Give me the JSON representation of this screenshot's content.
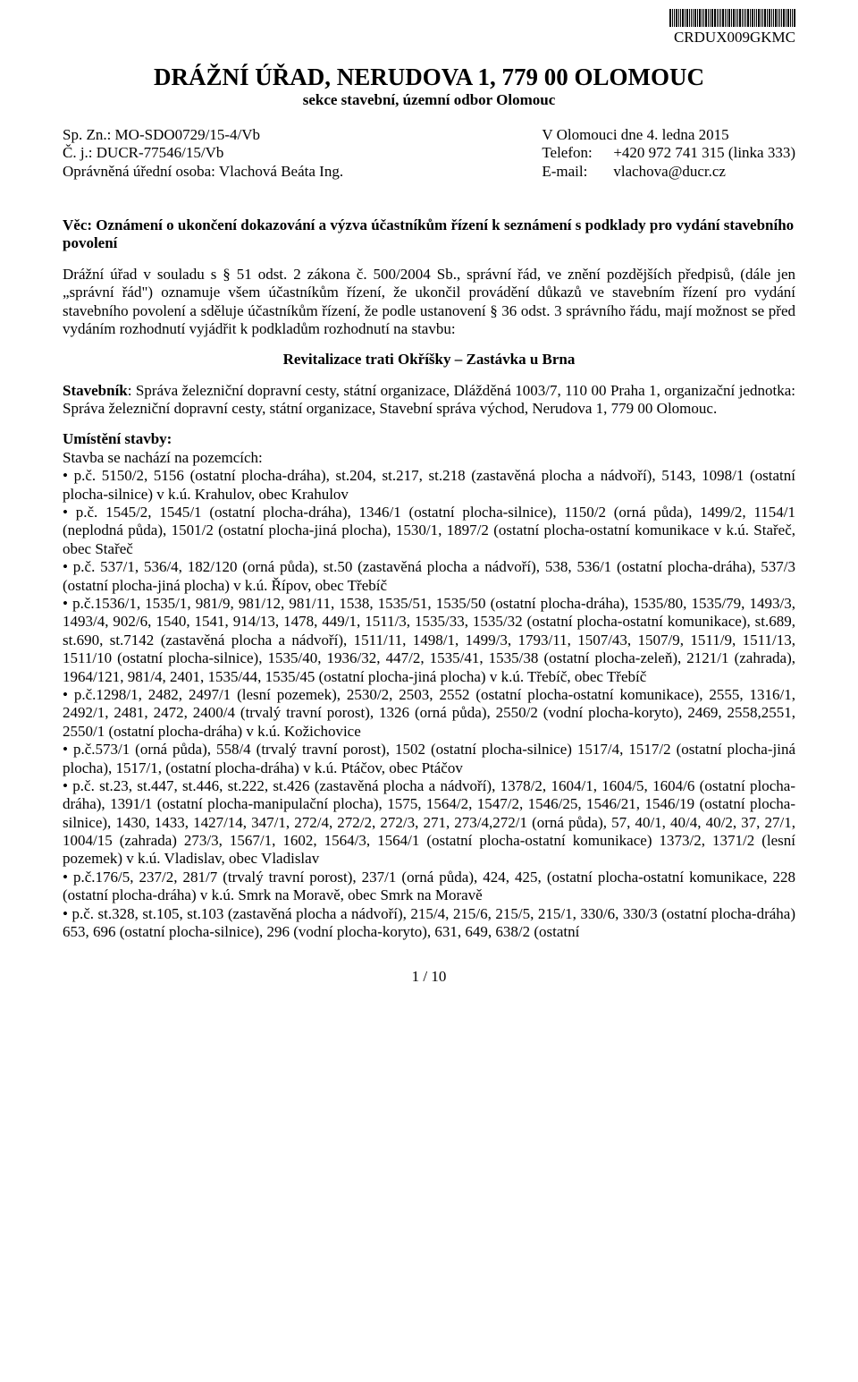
{
  "barcode_id": "*CRDUX009GKMC*",
  "barcode_text": "CRDUX009GKMC",
  "title": "DRÁŽNÍ ÚŘAD, NERUDOVA 1, 779 00 OLOMOUC",
  "subtitle": "sekce stavební, územní odbor Olomouc",
  "meta": {
    "sp_zn_label": "Sp. Zn.: MO-SDO0729/15-4/Vb",
    "cj_label": "Č. j.: DUCR-77546/15/Vb",
    "opravnena_label": "Oprávněná úřední osoba: Vlachová Beáta Ing.",
    "date": "V Olomouci dne 4. ledna 2015",
    "tel_label": "Telefon:",
    "tel_value": "+420 972 741 315 (linka 333)",
    "email_label": "E-mail:",
    "email_value": "vlachova@ducr.cz"
  },
  "subject_line": "Věc: Oznámení o ukončení dokazování a výzva účastníkům řízení k seznámení s podklady pro vydání stavebního povolení",
  "body1": "Drážní úřad v souladu s § 51 odst. 2 zákona č. 500/2004 Sb., správní řád, ve znění pozdějších předpisů, (dále jen „správní řád\") oznamuje všem účastníkům řízení, že ukončil provádění důkazů ve stavebním řízení pro vydání stavebního povolení a sděluje účastníkům řízení, že podle ustanovení § 36 odst. 3 správního řádu, mají možnost se před vydáním rozhodnutí vyjádřit k podkladům rozhodnutí na stavbu:",
  "project_title": "Revitalizace trati Okříšky – Zastávka u Brna",
  "stavebnik_label": "Stavebník",
  "stavebnik_text": ": Správa železniční dopravní cesty, státní organizace, Dlážděná 1003/7, 110 00 Praha 1, organizační jednotka: Správa železniční dopravní cesty, státní organizace, Stavební správa východ, Nerudova 1, 779 00 Olomouc.",
  "umisteni_label": "Umístění stavby:",
  "stavba_nachazi": "Stavba se nachází na pozemcích:",
  "parcels": [
    "p.č. 5150/2, 5156 (ostatní plocha-dráha), st.204, st.217, st.218 (zastavěná plocha a nádvoří), 5143, 1098/1 (ostatní plocha-silnice) v k.ú. Krahulov, obec Krahulov",
    "p.č. 1545/2, 1545/1 (ostatní plocha-dráha), 1346/1 (ostatní plocha-silnice), 1150/2 (orná půda), 1499/2, 1154/1 (neplodná půda), 1501/2 (ostatní plocha-jiná plocha), 1530/1, 1897/2 (ostatní plocha-ostatní komunikace v k.ú. Stařeč, obec Stařeč",
    "p.č. 537/1, 536/4, 182/120 (orná půda), st.50 (zastavěná plocha a nádvoří), 538, 536/1 (ostatní plocha-dráha), 537/3 (ostatní plocha-jiná plocha) v k.ú. Řípov, obec Třebíč",
    "p.č.1536/1, 1535/1, 981/9, 981/12, 981/11, 1538, 1535/51, 1535/50 (ostatní plocha-dráha), 1535/80, 1535/79, 1493/3, 1493/4, 902/6, 1540, 1541, 914/13, 1478, 449/1, 1511/3, 1535/33, 1535/32 (ostatní plocha-ostatní komunikace), st.689, st.690, st.7142 (zastavěná plocha a nádvoří), 1511/11, 1498/1, 1499/3, 1793/11, 1507/43, 1507/9, 1511/9, 1511/13, 1511/10 (ostatní plocha-silnice), 1535/40, 1936/32, 447/2, 1535/41, 1535/38 (ostatní plocha-zeleň), 2121/1 (zahrada), 1964/121, 981/4, 2401, 1535/44, 1535/45 (ostatní plocha-jiná plocha) v k.ú. Třebíč, obec Třebíč",
    "p.č.1298/1, 2482, 2497/1 (lesní pozemek), 2530/2, 2503, 2552 (ostatní plocha-ostatní komunikace), 2555, 1316/1, 2492/1, 2481, 2472, 2400/4 (trvalý travní porost), 1326 (orná půda), 2550/2 (vodní plocha-koryto), 2469, 2558,2551, 2550/1 (ostatní plocha-dráha) v k.ú. Kožichovice",
    "p.č.573/1 (orná půda), 558/4 (trvalý travní porost), 1502 (ostatní plocha-silnice) 1517/4, 1517/2 (ostatní plocha-jiná plocha), 1517/1, (ostatní plocha-dráha) v k.ú. Ptáčov, obec Ptáčov",
    "p.č. st.23, st.447, st.446, st.222, st.426 (zastavěná plocha a nádvoří), 1378/2, 1604/1, 1604/5, 1604/6 (ostatní plocha-dráha), 1391/1 (ostatní plocha-manipulační plocha), 1575, 1564/2, 1547/2, 1546/25, 1546/21, 1546/19 (ostatní plocha-silnice), 1430, 1433, 1427/14, 347/1, 272/4, 272/2, 272/3, 271, 273/4,272/1 (orná půda), 57, 40/1, 40/4, 40/2, 37, 27/1, 1004/15 (zahrada) 273/3, 1567/1, 1602, 1564/3, 1564/1 (ostatní plocha-ostatní komunikace) 1373/2, 1371/2 (lesní pozemek) v k.ú. Vladislav, obec Vladislav",
    "p.č.176/5, 237/2, 281/7 (trvalý travní porost), 237/1 (orná půda), 424, 425, (ostatní plocha-ostatní komunikace, 228 (ostatní plocha-dráha) v k.ú. Smrk na Moravě, obec Smrk na Moravě",
    "p.č. st.328, st.105, st.103 (zastavěná plocha a nádvoří), 215/4, 215/6, 215/5, 215/1, 330/6, 330/3 (ostatní plocha-dráha) 653, 696 (ostatní plocha-silnice), 296 (vodní plocha-koryto), 631, 649, 638/2 (ostatní"
  ],
  "page_number": "1 / 10",
  "barcode_widths": [
    2,
    1,
    1,
    2,
    1,
    1,
    2,
    1,
    2,
    1,
    1,
    1,
    2,
    1,
    2,
    1,
    1,
    2,
    1,
    1,
    2,
    2,
    1,
    1,
    1,
    2,
    1,
    1,
    2,
    1,
    2,
    1,
    1,
    2,
    1,
    1,
    1,
    2,
    1,
    2,
    1,
    1,
    2,
    1,
    1,
    2,
    1,
    2,
    1,
    1,
    2,
    1,
    1,
    1,
    2,
    1,
    2,
    1,
    1,
    2
  ]
}
